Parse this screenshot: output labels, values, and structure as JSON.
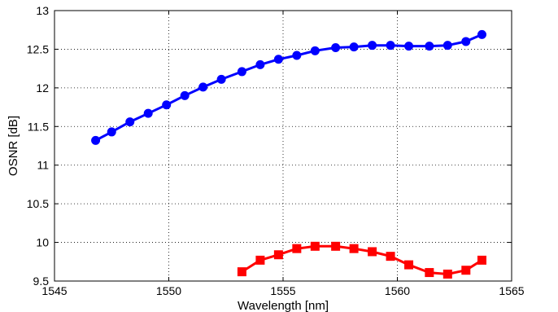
{
  "chart_data": {
    "type": "line",
    "title": "",
    "xlabel": "Wavelength [nm]",
    "ylabel": "OSNR [dB]",
    "xlim": [
      1545,
      1565
    ],
    "ylim": [
      9.5,
      13
    ],
    "xticks": [
      1545,
      1550,
      1555,
      1560,
      1565
    ],
    "yticks": [
      9.5,
      10,
      10.5,
      11,
      11.5,
      12,
      12.5,
      13
    ],
    "xtick_labels": [
      "1545",
      "1550",
      "1555",
      "1560",
      "1565"
    ],
    "ytick_labels": [
      "9.5",
      "10",
      "10.5",
      "11",
      "11.5",
      "12",
      "12.5",
      "13"
    ],
    "grid": true,
    "legend": "none",
    "series": [
      {
        "color": "#0000ff",
        "marker": "circle",
        "x": [
          1546.8,
          1547.5,
          1548.3,
          1549.1,
          1549.9,
          1550.7,
          1551.5,
          1552.3,
          1553.2,
          1554.0,
          1554.8,
          1555.6,
          1556.4,
          1557.3,
          1558.1,
          1558.9,
          1559.7,
          1560.5,
          1561.4,
          1562.2,
          1563.0,
          1563.7
        ],
        "y": [
          11.32,
          11.43,
          11.56,
          11.67,
          11.78,
          11.9,
          12.01,
          12.11,
          12.21,
          12.3,
          12.37,
          12.42,
          12.48,
          12.52,
          12.53,
          12.55,
          12.55,
          12.54,
          12.54,
          12.55,
          12.6,
          12.69
        ]
      },
      {
        "color": "#ff0000",
        "marker": "square",
        "x": [
          1553.2,
          1554.0,
          1554.8,
          1555.6,
          1556.4,
          1557.3,
          1558.1,
          1558.9,
          1559.7,
          1560.5,
          1561.4,
          1562.2,
          1563.0,
          1563.7
        ],
        "y": [
          9.62,
          9.77,
          9.84,
          9.92,
          9.95,
          9.95,
          9.92,
          9.88,
          9.82,
          9.71,
          9.61,
          9.59,
          9.64,
          9.77
        ]
      }
    ]
  }
}
